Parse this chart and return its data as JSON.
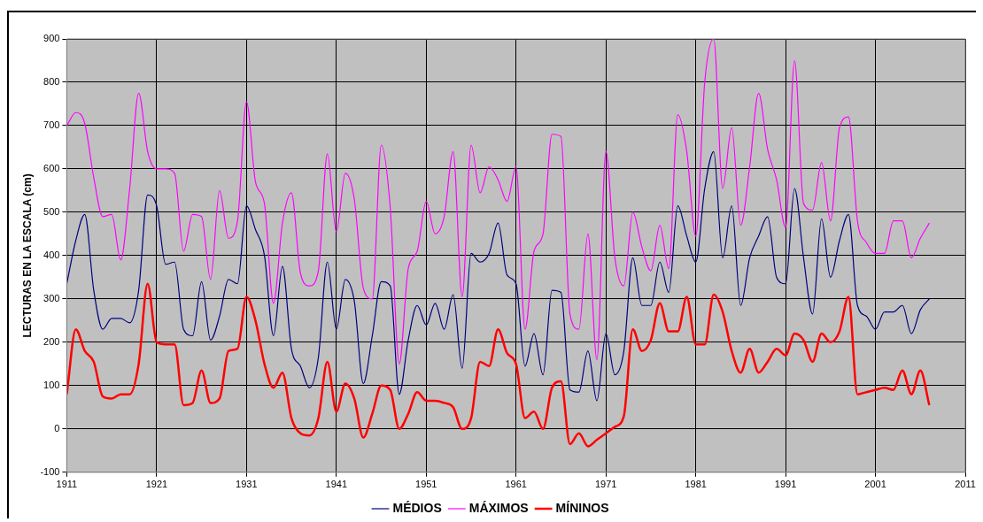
{
  "chart_data": {
    "type": "line",
    "ylabel": "LECTURAS EN LA ESCALA (cm)",
    "x": [
      1911,
      1912,
      1913,
      1914,
      1915,
      1916,
      1917,
      1918,
      1919,
      1920,
      1921,
      1922,
      1923,
      1924,
      1925,
      1926,
      1927,
      1928,
      1929,
      1930,
      1931,
      1932,
      1933,
      1934,
      1935,
      1936,
      1937,
      1938,
      1939,
      1940,
      1941,
      1942,
      1943,
      1944,
      1945,
      1946,
      1947,
      1948,
      1949,
      1950,
      1951,
      1952,
      1953,
      1954,
      1955,
      1956,
      1957,
      1958,
      1959,
      1960,
      1961,
      1962,
      1963,
      1964,
      1965,
      1966,
      1967,
      1968,
      1969,
      1970,
      1971,
      1972,
      1973,
      1974,
      1975,
      1976,
      1977,
      1978,
      1979,
      1980,
      1981,
      1982,
      1983,
      1984,
      1985,
      1986,
      1987,
      1988,
      1989,
      1990,
      1991,
      1992,
      1993,
      1994,
      1995,
      1996,
      1997,
      1998,
      1999,
      2000,
      2001,
      2002,
      2003,
      2004,
      2005,
      2006,
      2007
    ],
    "series": [
      {
        "name": "MÉDIOS",
        "color": "#000080",
        "values": [
          335,
          435,
          495,
          320,
          230,
          255,
          255,
          245,
          320,
          540,
          515,
          380,
          385,
          230,
          215,
          340,
          205,
          260,
          345,
          335,
          515,
          460,
          400,
          215,
          375,
          185,
          145,
          95,
          165,
          385,
          230,
          345,
          295,
          105,
          215,
          340,
          330,
          80,
          205,
          285,
          240,
          290,
          230,
          310,
          140,
          405,
          385,
          405,
          475,
          355,
          335,
          145,
          220,
          125,
          320,
          315,
          90,
          85,
          180,
          65,
          220,
          125,
          180,
          395,
          285,
          285,
          385,
          315,
          515,
          445,
          385,
          555,
          640,
          395,
          515,
          285,
          395,
          445,
          490,
          350,
          335,
          555,
          395,
          265,
          485,
          350,
          435,
          495,
          285,
          260,
          230,
          270,
          270,
          285,
          220,
          275,
          300
        ]
      },
      {
        "name": "MÁXIMOS",
        "color": "#ff00ff",
        "values": [
          700,
          730,
          705,
          580,
          490,
          495,
          390,
          555,
          775,
          640,
          600,
          600,
          590,
          410,
          495,
          490,
          345,
          550,
          440,
          480,
          755,
          570,
          520,
          290,
          475,
          545,
          360,
          330,
          365,
          635,
          455,
          590,
          530,
          325,
          300,
          655,
          510,
          150,
          370,
          410,
          525,
          450,
          490,
          640,
          305,
          655,
          545,
          605,
          575,
          525,
          605,
          230,
          410,
          450,
          680,
          675,
          265,
          230,
          450,
          160,
          640,
          395,
          330,
          500,
          420,
          365,
          470,
          370,
          725,
          640,
          445,
          800,
          900,
          555,
          695,
          470,
          605,
          775,
          645,
          575,
          465,
          850,
          520,
          505,
          615,
          480,
          695,
          720,
          480,
          430,
          405,
          405,
          480,
          480,
          395,
          440,
          475
        ]
      },
      {
        "name": "MÍNINOS",
        "color": "#ff0000",
        "values": [
          80,
          230,
          180,
          155,
          75,
          70,
          80,
          80,
          150,
          335,
          200,
          195,
          195,
          55,
          60,
          135,
          60,
          70,
          180,
          185,
          305,
          250,
          150,
          95,
          130,
          25,
          -10,
          -15,
          25,
          155,
          40,
          105,
          70,
          -20,
          35,
          100,
          90,
          0,
          35,
          85,
          65,
          65,
          60,
          50,
          0,
          25,
          155,
          145,
          230,
          175,
          150,
          25,
          40,
          0,
          95,
          110,
          -35,
          -10,
          -40,
          -25,
          -10,
          5,
          30,
          230,
          180,
          205,
          290,
          225,
          225,
          305,
          195,
          195,
          310,
          270,
          180,
          130,
          185,
          130,
          155,
          185,
          170,
          220,
          205,
          155,
          220,
          200,
          225,
          305,
          80,
          85,
          90,
          95,
          90,
          135,
          80,
          135,
          55
        ]
      }
    ],
    "xlim": [
      1911,
      2011
    ],
    "xticks": [
      1911,
      1921,
      1931,
      1941,
      1951,
      1961,
      1971,
      1981,
      1991,
      2001,
      2011
    ],
    "ylim": [
      -100,
      900
    ],
    "yticks": [
      -100,
      0,
      100,
      200,
      300,
      400,
      500,
      600,
      700,
      800,
      900
    ],
    "grid": true,
    "legend": "bottom",
    "marker": "none",
    "line_style": "solid"
  }
}
